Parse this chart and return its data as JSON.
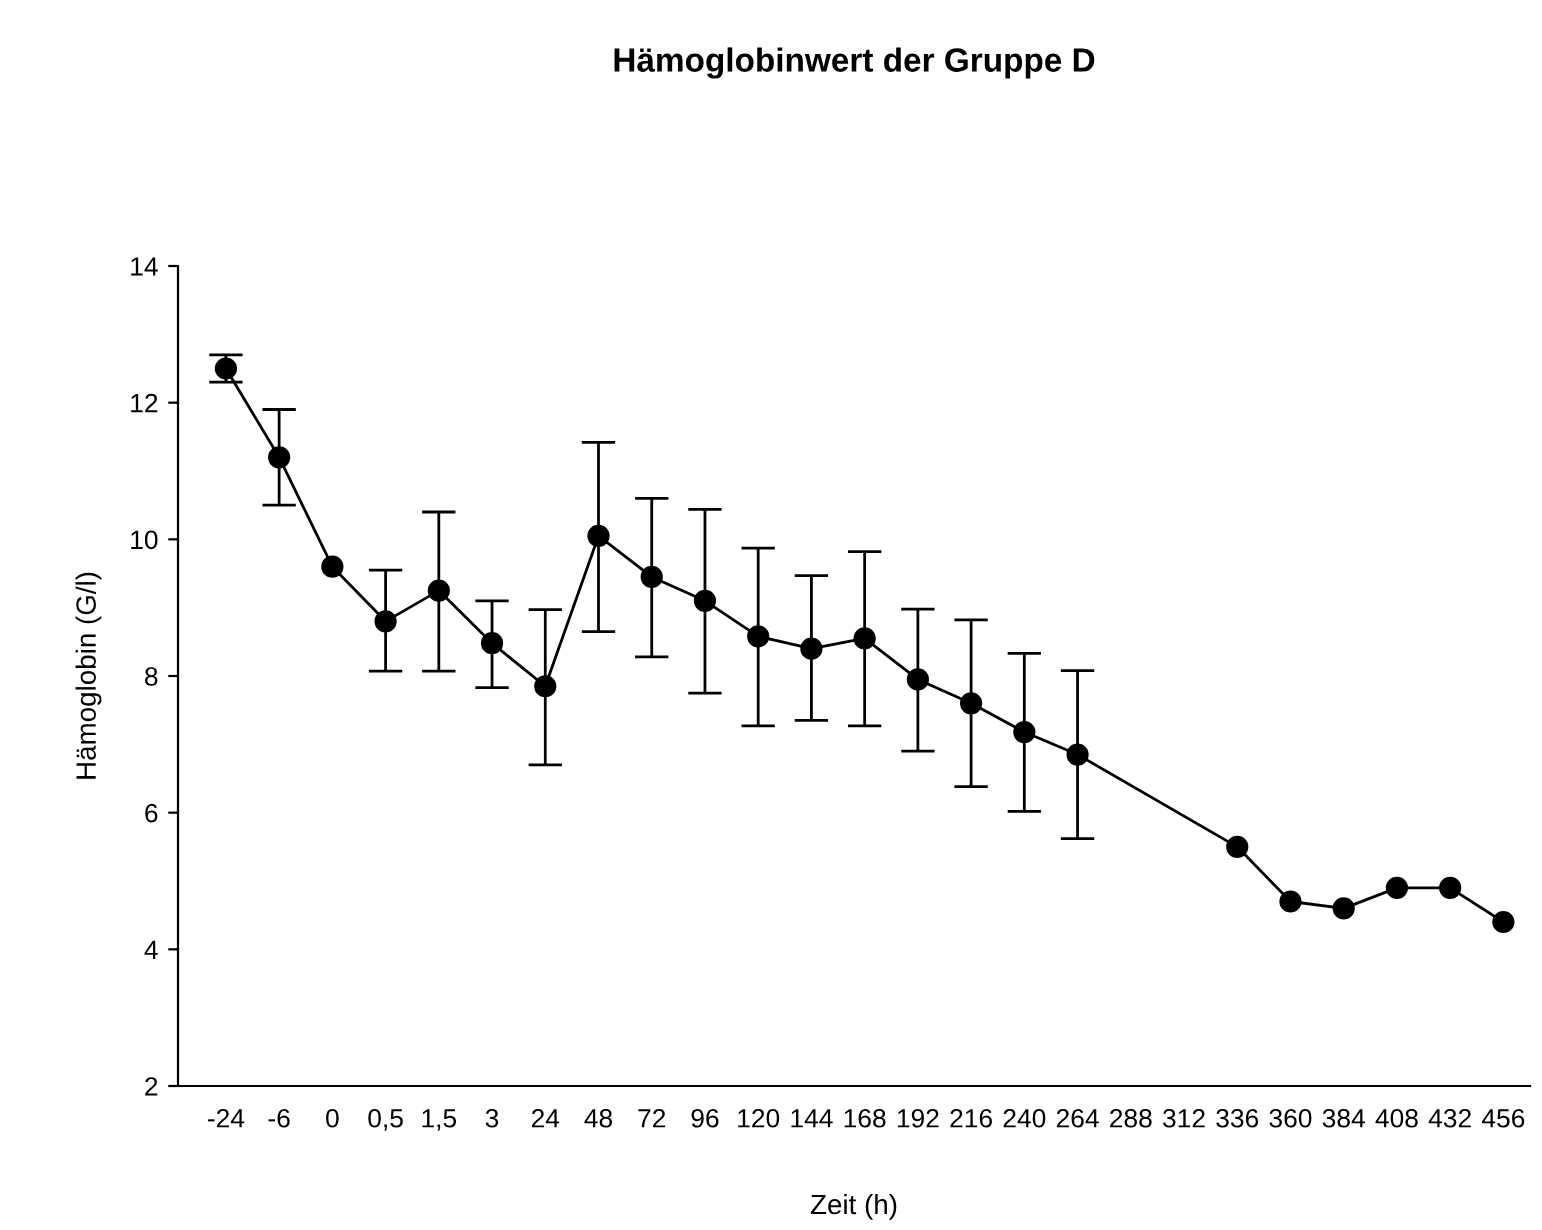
{
  "chart_data": {
    "type": "line",
    "title": "Hämoglobinwert der Gruppe D",
    "xlabel": "Zeit (h)",
    "ylabel": "Hämoglobin (G/l)",
    "categories": [
      "-24",
      "-6",
      "0",
      "0,5",
      "1,5",
      "3",
      "24",
      "48",
      "72",
      "96",
      "120",
      "144",
      "168",
      "192",
      "216",
      "240",
      "264",
      "288",
      "312",
      "336",
      "360",
      "384",
      "408",
      "432",
      "456"
    ],
    "series": [
      {
        "color": "#000000",
        "values": [
          12.5,
          11.2,
          9.6,
          8.8,
          9.25,
          8.48,
          7.85,
          10.05,
          9.45,
          9.1,
          8.58,
          8.4,
          8.55,
          7.95,
          7.6,
          7.18,
          6.85,
          null,
          null,
          5.5,
          4.7,
          4.6,
          4.9,
          4.9,
          4.4
        ],
        "errors": [
          [
            12.3,
            12.7
          ],
          [
            10.5,
            11.9
          ],
          null,
          [
            8.07,
            9.55
          ],
          [
            8.07,
            10.4
          ],
          [
            7.83,
            9.1
          ],
          [
            6.7,
            8.97
          ],
          [
            8.65,
            11.42
          ],
          [
            8.28,
            10.6
          ],
          [
            7.75,
            10.44
          ],
          [
            7.27,
            9.87
          ],
          [
            7.35,
            9.47
          ],
          [
            7.27,
            9.82
          ],
          [
            6.9,
            8.98
          ],
          [
            6.38,
            8.82
          ],
          [
            6.02,
            8.33
          ],
          [
            5.62,
            8.08
          ],
          null,
          null,
          null,
          null,
          null,
          null,
          null,
          null
        ]
      }
    ],
    "ylim": [
      2,
      14
    ],
    "yticks": [
      2,
      4,
      6,
      8,
      10,
      12,
      14
    ],
    "marker": "circle",
    "line_style": "solid",
    "grid": false,
    "legend": false
  }
}
